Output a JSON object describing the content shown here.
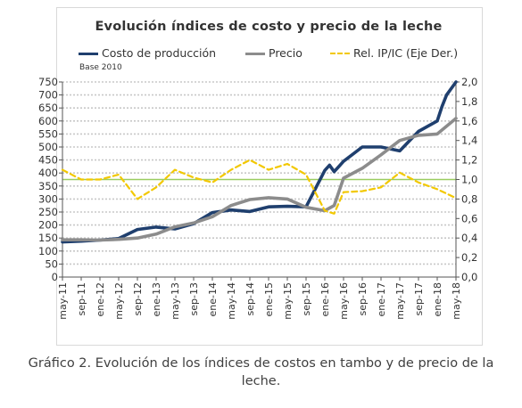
{
  "chart_data": {
    "type": "line",
    "title": "Evolución  índices de costo y precio de la leche",
    "subtitle": "Base 2010",
    "caption": "Gráfico 2. Evolución de los índices de costos en tambo y de precio de la leche.",
    "x_tick_labels": [
      "may-11",
      "sep-11",
      "ene-12",
      "may-12",
      "sep-12",
      "ene-13",
      "may-13",
      "sep-13",
      "ene-14",
      "may-14",
      "sep-14",
      "ene-15",
      "may-15",
      "sep-15",
      "ene-16",
      "may-16",
      "sep-16",
      "ene-17",
      "may-17",
      "sep-17",
      "ene-18",
      "may-18"
    ],
    "y_left": {
      "min": 0,
      "max": 750,
      "step": 50,
      "ticks": [
        "0",
        "50",
        "100",
        "150",
        "200",
        "250",
        "300",
        "350",
        "400",
        "450",
        "500",
        "550",
        "600",
        "650",
        "700",
        "750"
      ]
    },
    "y_right": {
      "min": 0,
      "max": 2.0,
      "ticks": [
        "0,0",
        "0,2",
        "0,4",
        "0,6",
        "0,8",
        "1,0",
        "1,2",
        "1,4",
        "1,6",
        "1,8",
        "2,0"
      ]
    },
    "grid": true,
    "reference_line": {
      "axis": "right",
      "value": 1.0,
      "color": "#9acd60"
    },
    "legend_position": "top",
    "series": [
      {
        "name": "Costo de producción",
        "axis": "left",
        "color": "#1f3f6e",
        "style": "solid",
        "x": [
          "may-11",
          "sep-11",
          "ene-12",
          "may-12",
          "sep-12",
          "ene-13",
          "may-13",
          "sep-13",
          "ene-14",
          "may-14",
          "sep-14",
          "ene-15",
          "may-15",
          "sep-15",
          "ene-16",
          "feb-16",
          "mar-16",
          "may-16",
          "sep-16",
          "ene-17",
          "may-17",
          "sep-17",
          "ene-18",
          "feb-18",
          "mar-18",
          "may-18"
        ],
        "values": [
          135,
          138,
          142,
          148,
          183,
          192,
          185,
          205,
          248,
          258,
          252,
          270,
          272,
          270,
          410,
          430,
          405,
          445,
          500,
          500,
          485,
          560,
          600,
          655,
          700,
          750
        ]
      },
      {
        "name": "Precio",
        "axis": "left",
        "color": "#8c8c8c",
        "style": "solid",
        "x": [
          "may-11",
          "sep-11",
          "ene-12",
          "may-12",
          "sep-12",
          "ene-13",
          "may-13",
          "sep-13",
          "ene-14",
          "may-14",
          "sep-14",
          "ene-15",
          "may-15",
          "sep-15",
          "ene-16",
          "mar-16",
          "may-16",
          "sep-16",
          "ene-17",
          "may-17",
          "sep-17",
          "ene-18",
          "may-18"
        ],
        "values": [
          143,
          143,
          142,
          145,
          150,
          165,
          193,
          208,
          232,
          275,
          298,
          305,
          300,
          268,
          255,
          275,
          380,
          418,
          470,
          525,
          545,
          550,
          610
        ]
      },
      {
        "name": "Rel. IP/IC (Eje Der.)",
        "axis": "right",
        "color": "#f2c800",
        "style": "dashed",
        "x": [
          "may-11",
          "sep-11",
          "ene-12",
          "may-12",
          "sep-12",
          "ene-13",
          "may-13",
          "sep-13",
          "ene-14",
          "may-14",
          "sep-14",
          "ene-15",
          "may-15",
          "sep-15",
          "ene-16",
          "mar-16",
          "may-16",
          "sep-16",
          "ene-17",
          "may-17",
          "sep-17",
          "ene-18",
          "may-18"
        ],
        "values": [
          1.1,
          1.0,
          1.0,
          1.05,
          0.8,
          0.92,
          1.1,
          1.02,
          0.97,
          1.1,
          1.2,
          1.1,
          1.16,
          1.05,
          0.68,
          0.65,
          0.87,
          0.88,
          0.92,
          1.07,
          0.97,
          0.9,
          0.81
        ]
      }
    ]
  }
}
